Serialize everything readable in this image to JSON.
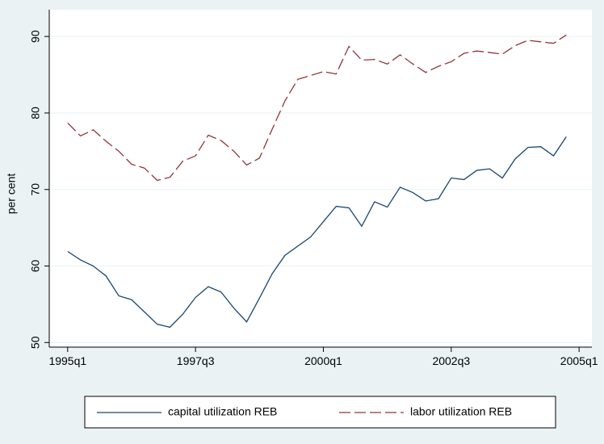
{
  "chart_data": {
    "type": "line",
    "y_label": "per cent",
    "x": [
      1995,
      1995.25,
      1995.5,
      1995.75,
      1996,
      1996.25,
      1996.5,
      1996.75,
      1997,
      1997.25,
      1997.5,
      1997.75,
      1998,
      1998.25,
      1998.5,
      1998.75,
      1999,
      1999.25,
      1999.5,
      1999.75,
      2000,
      2000.25,
      2000.5,
      2000.75,
      2001,
      2001.25,
      2001.5,
      2001.75,
      2002,
      2002.25,
      2002.5,
      2002.75,
      2003,
      2003.25,
      2003.5,
      2003.75,
      2004,
      2004.25,
      2004.5,
      2004.75
    ],
    "series": [
      {
        "name": "capital utilization REB",
        "color": "#1a476f",
        "dash": false,
        "values": [
          61.9,
          60.8,
          60.0,
          58.7,
          56.1,
          55.6,
          54.0,
          52.4,
          52.0,
          53.7,
          55.9,
          57.3,
          56.6,
          54.5,
          52.7,
          55.8,
          59.0,
          61.4,
          62.6,
          63.8,
          65.8,
          67.8,
          67.6,
          65.2,
          68.4,
          67.7,
          70.3,
          69.6,
          68.5,
          68.8,
          71.5,
          71.3,
          72.5,
          72.7,
          71.5,
          74.0,
          75.5,
          75.6,
          74.4,
          76.9
        ]
      },
      {
        "name": "labor utilization REB",
        "color": "#90353b",
        "dash": true,
        "values": [
          78.7,
          77.0,
          77.8,
          76.3,
          75.0,
          73.3,
          72.8,
          71.2,
          71.6,
          73.7,
          74.4,
          77.1,
          76.4,
          75.0,
          73.2,
          74.1,
          77.9,
          81.6,
          84.4,
          84.9,
          85.4,
          85.1,
          88.7,
          86.9,
          87.0,
          86.4,
          87.6,
          86.4,
          85.3,
          86.1,
          86.7,
          87.8,
          88.1,
          87.9,
          87.7,
          88.8,
          89.5,
          89.3,
          89.1,
          90.2
        ]
      }
    ],
    "xlim": [
      1994.64,
      2005.25
    ],
    "xticks": [
      {
        "value": 1995,
        "label": "1995q1"
      },
      {
        "value": 1997.5,
        "label": "1997q3"
      },
      {
        "value": 2000,
        "label": "2000q1"
      },
      {
        "value": 2002.5,
        "label": "2002q3"
      },
      {
        "value": 2005,
        "label": "2005q1"
      }
    ],
    "ylim": [
      49.4,
      93.5
    ],
    "yticks": [
      50,
      60,
      70,
      80,
      90
    ],
    "grid": true
  }
}
